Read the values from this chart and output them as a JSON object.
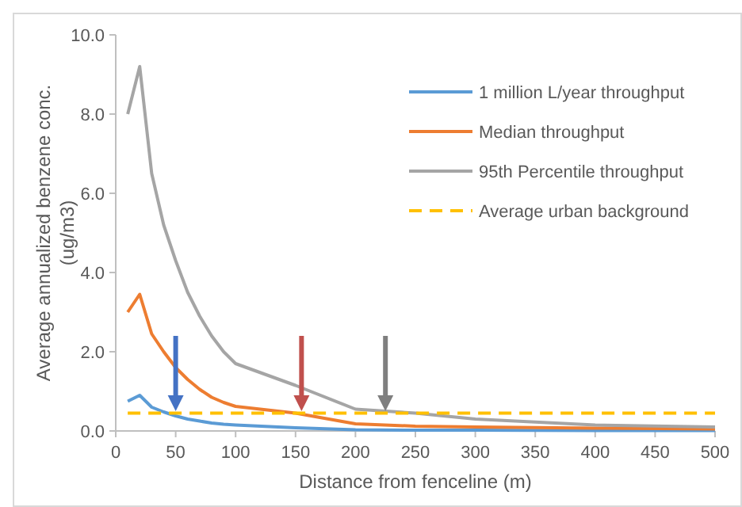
{
  "chart_data": {
    "type": "line",
    "xlabel": "Distance from fenceline (m)",
    "ylabel": "Average annualized benzene conc. (ug/m3)",
    "x": [
      10,
      20,
      30,
      40,
      50,
      60,
      70,
      80,
      90,
      100,
      150,
      200,
      250,
      300,
      400,
      500
    ],
    "series": [
      {
        "name": "1 million L/year throughput",
        "color": "#5b9bd5",
        "values": [
          0.75,
          0.9,
          0.6,
          0.48,
          0.38,
          0.3,
          0.25,
          0.2,
          0.17,
          0.15,
          0.08,
          0.03,
          0.02,
          0.02,
          0.01,
          0.01
        ]
      },
      {
        "name": "Median throughput",
        "color": "#ed7d31",
        "values": [
          3.0,
          3.45,
          2.45,
          2.0,
          1.6,
          1.3,
          1.05,
          0.85,
          0.72,
          0.62,
          0.45,
          0.18,
          0.12,
          0.1,
          0.07,
          0.05
        ]
      },
      {
        "name": "95th Percentile throughput",
        "color": "#a5a5a5",
        "values": [
          8.0,
          9.2,
          6.5,
          5.2,
          4.3,
          3.5,
          2.9,
          2.4,
          2.0,
          1.7,
          1.15,
          0.55,
          0.45,
          0.3,
          0.15,
          0.1
        ]
      },
      {
        "name": "Average urban background",
        "color": "#ffc000",
        "x": [
          10,
          500
        ],
        "values": [
          0.45,
          0.45
        ],
        "line_style": "dashed"
      }
    ],
    "xlim": [
      0,
      500
    ],
    "xticks": [
      0,
      50,
      100,
      150,
      200,
      250,
      300,
      350,
      400,
      450,
      500
    ],
    "ylim": [
      0,
      10
    ],
    "yticks": [
      {
        "value": 0,
        "label": "0.0"
      },
      {
        "value": 2,
        "label": "2.0"
      },
      {
        "value": 4,
        "label": "4.0"
      },
      {
        "value": 6,
        "label": "6.0"
      },
      {
        "value": 8,
        "label": "8.0"
      },
      {
        "value": 10,
        "label": "10.0"
      }
    ],
    "grid": false,
    "legend": "top right",
    "marker": "none",
    "line_style": "solid"
  }
}
